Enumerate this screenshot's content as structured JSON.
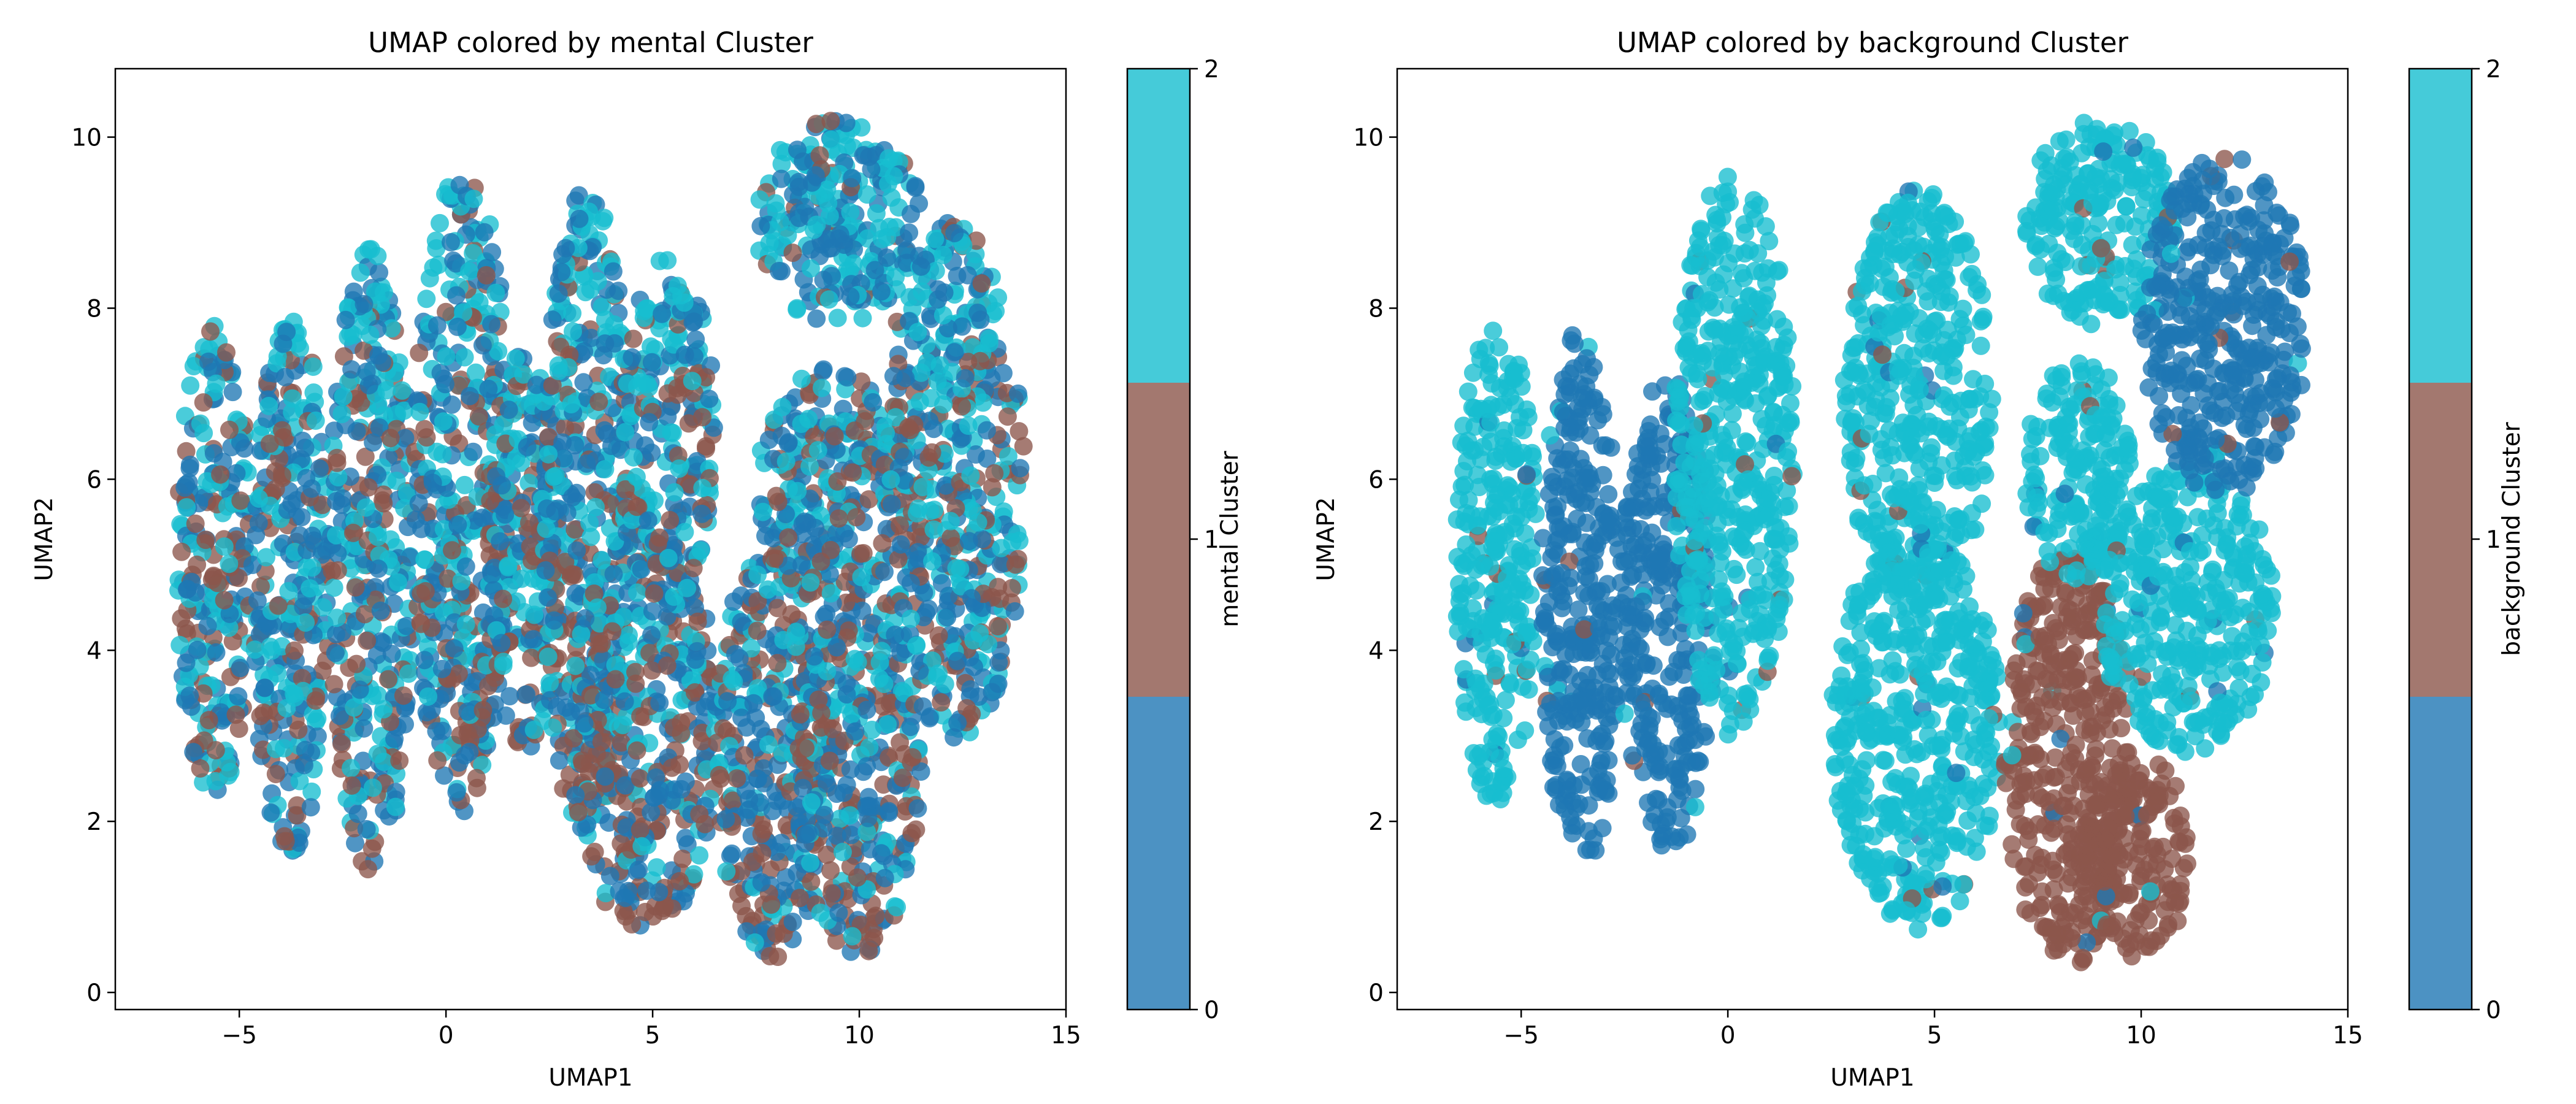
{
  "chart_data": [
    {
      "type": "scatter",
      "title": "UMAP colored by mental Cluster",
      "xlabel": "UMAP1",
      "ylabel": "UMAP2",
      "xlim": [
        -8,
        15
      ],
      "ylim": [
        -0.2,
        10.8
      ],
      "xticks": [
        "−5",
        "0",
        "5",
        "10",
        "15"
      ],
      "xtick_values": [
        -5,
        0,
        5,
        10,
        15
      ],
      "yticks": [
        "0",
        "2",
        "4",
        "6",
        "8",
        "10"
      ],
      "ytick_values": [
        0,
        2,
        4,
        6,
        8,
        10
      ],
      "grid": false,
      "colorbar": {
        "label": "mental Cluster",
        "ticks": [
          "0",
          "1",
          "2"
        ],
        "colors": [
          "#1f77b4",
          "#8c564b",
          "#17becf"
        ]
      },
      "color_mode": "mixed",
      "regions": [
        {
          "x": [
            -6.5,
            -4.7
          ],
          "y": [
            2.3,
            7.8
          ]
        },
        {
          "x": [
            -4.7,
            -2.8
          ],
          "y": [
            1.6,
            7.9
          ]
        },
        {
          "x": [
            -2.8,
            -0.8
          ],
          "y": [
            1.4,
            8.7
          ]
        },
        {
          "x": [
            -0.8,
            1.6
          ],
          "y": [
            2.1,
            9.6
          ]
        },
        {
          "x": [
            1.0,
            2.8
          ],
          "y": [
            2.8,
            7.5
          ]
        },
        {
          "x": [
            2.3,
            4.5
          ],
          "y": [
            1.8,
            9.4
          ]
        },
        {
          "x": [
            3.0,
            6.6
          ],
          "y": [
            0.7,
            5.5
          ]
        },
        {
          "x": [
            4.2,
            6.5
          ],
          "y": [
            4.5,
            8.6
          ]
        },
        {
          "x": [
            6.5,
            9.3
          ],
          "y": [
            0.4,
            5.2
          ]
        },
        {
          "x": [
            8.5,
            11.5
          ],
          "y": [
            0.4,
            4.8
          ]
        },
        {
          "x": [
            7.5,
            11.0
          ],
          "y": [
            4.5,
            7.3
          ]
        },
        {
          "x": [
            7.5,
            11.5
          ],
          "y": [
            7.8,
            10.2
          ]
        },
        {
          "x": [
            10.5,
            14.0
          ],
          "y": [
            2.9,
            9.0
          ]
        }
      ]
    },
    {
      "type": "scatter",
      "title": "UMAP colored by background Cluster",
      "xlabel": "UMAP1",
      "ylabel": "UMAP2",
      "xlim": [
        -8,
        15
      ],
      "ylim": [
        -0.2,
        10.8
      ],
      "xticks": [
        "−5",
        "0",
        "5",
        "10",
        "15"
      ],
      "xtick_values": [
        -5,
        0,
        5,
        10,
        15
      ],
      "yticks": [
        "0",
        "2",
        "4",
        "6",
        "8",
        "10"
      ],
      "ytick_values": [
        0,
        2,
        4,
        6,
        8,
        10
      ],
      "grid": false,
      "colorbar": {
        "label": "background Cluster",
        "ticks": [
          "0",
          "1",
          "2"
        ],
        "colors": [
          "#1f77b4",
          "#8c564b",
          "#17becf"
        ]
      },
      "color_mode": "by_region",
      "regions": [
        {
          "x": [
            -6.6,
            -4.6
          ],
          "y": [
            2.2,
            7.8
          ],
          "cluster": 2
        },
        {
          "x": [
            -4.5,
            -2.6
          ],
          "y": [
            1.4,
            7.8
          ],
          "cluster": 0
        },
        {
          "x": [
            -2.6,
            -0.3
          ],
          "y": [
            1.6,
            7.2
          ],
          "cluster": 0
        },
        {
          "x": [
            -1.3,
            1.6
          ],
          "y": [
            3.0,
            9.6
          ],
          "cluster": 2
        },
        {
          "x": [
            2.5,
            6.6
          ],
          "y": [
            0.7,
            5.4
          ],
          "cluster": 2
        },
        {
          "x": [
            2.8,
            6.4
          ],
          "y": [
            4.5,
            9.4
          ],
          "cluster": 2
        },
        {
          "x": [
            6.7,
            9.8
          ],
          "y": [
            0.3,
            5.2
          ],
          "cluster": 1
        },
        {
          "x": [
            8.5,
            11.2
          ],
          "y": [
            0.4,
            2.8
          ],
          "cluster": 1
        },
        {
          "x": [
            7.2,
            9.8
          ],
          "y": [
            4.8,
            7.4
          ],
          "cluster": 2
        },
        {
          "x": [
            9.0,
            13.2
          ],
          "y": [
            2.8,
            6.2
          ],
          "cluster": 2
        },
        {
          "x": [
            7.2,
            10.8
          ],
          "y": [
            7.8,
            10.2
          ],
          "cluster": 2
        },
        {
          "x": [
            10.0,
            14.0
          ],
          "y": [
            5.8,
            9.8
          ],
          "cluster": 0
        }
      ]
    }
  ]
}
